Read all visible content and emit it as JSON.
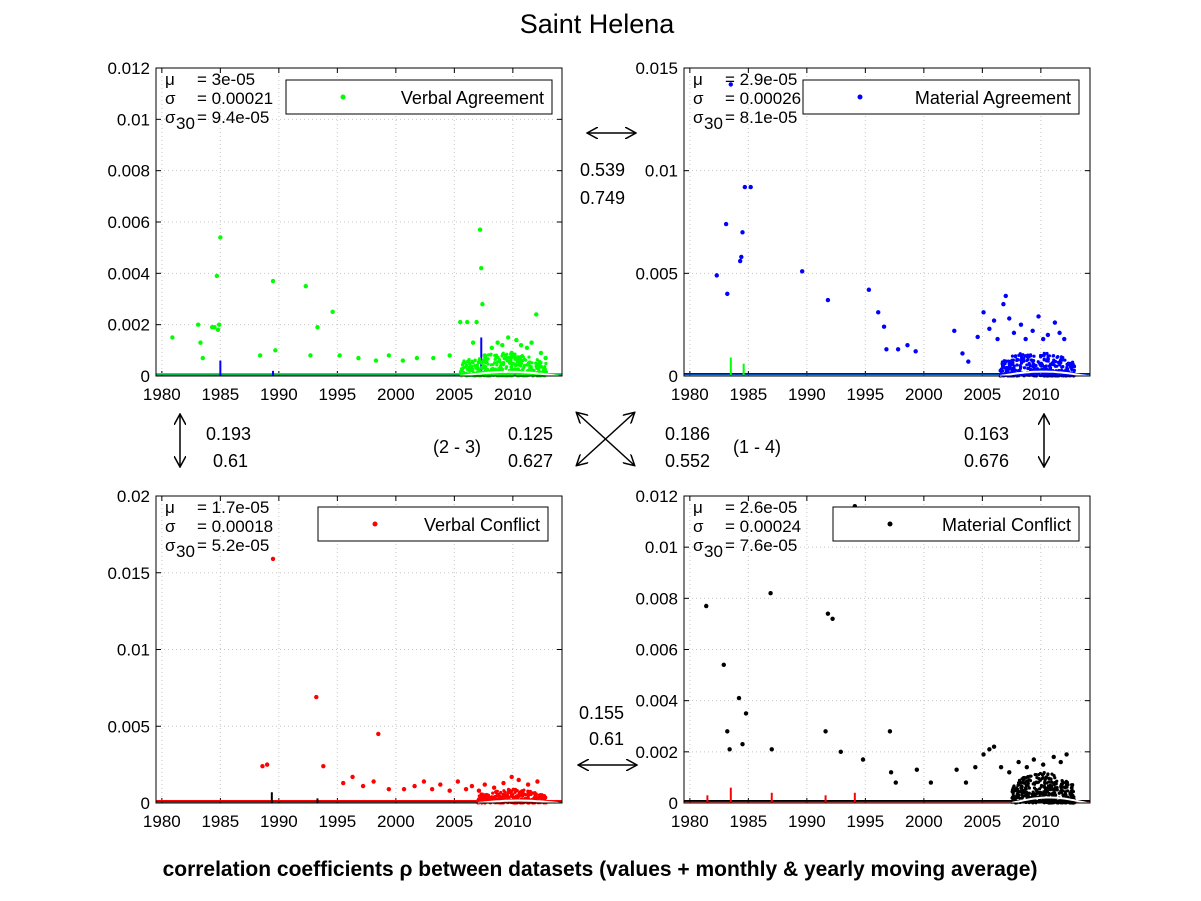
{
  "figure": {
    "title": "Saint Helena",
    "xlabel": "correlation coefficients ρ between datasets (values + monthly & yearly moving average)"
  },
  "correlations": [
    {
      "id": "1-2",
      "values": [
        "0.539",
        "0.749"
      ]
    },
    {
      "id": "1-3",
      "values": [
        "0.193",
        "0.61"
      ]
    },
    {
      "id": "2-3",
      "label": "(2 - 3)",
      "values": [
        "0.125",
        "0.627"
      ]
    },
    {
      "id": "1-4",
      "label": "(1 - 4)",
      "values": [
        "0.186",
        "0.552"
      ]
    },
    {
      "id": "2-4",
      "values": [
        "0.163",
        "0.676"
      ]
    },
    {
      "id": "3-4",
      "values": [
        "0.155",
        "0.61"
      ]
    }
  ],
  "chart_data": [
    {
      "type": "scatter",
      "panel": "Verbal Agreement",
      "legend": "Verbal Agreement",
      "color": "#00ff00",
      "overlay_color": "#0000ff",
      "stats": {
        "mu": "= 3e-05",
        "sigma": "= 0.00021",
        "sigma30": "= 9.4e-05"
      },
      "xlim": [
        1979.5,
        2014.2
      ],
      "ylim": [
        0,
        0.012
      ],
      "xticks": [
        "1980",
        "1985",
        "1990",
        "1995",
        "2000",
        "2005",
        "2010"
      ],
      "yticks": [
        "0",
        "0.002",
        "0.004",
        "0.006",
        "0.008",
        "0.01",
        "0.012"
      ],
      "grid": true,
      "legend_position": "top-right",
      "points": [
        [
          1980.9,
          0.0015
        ],
        [
          1983.1,
          0.002
        ],
        [
          1983.3,
          0.0013
        ],
        [
          1983.5,
          0.0007
        ],
        [
          1984.3,
          0.0019
        ],
        [
          1984.5,
          0.0019
        ],
        [
          1984.7,
          0.0039
        ],
        [
          1984.8,
          0.0018
        ],
        [
          1984.9,
          0.002
        ],
        [
          1985.0,
          0.0054
        ],
        [
          1988.4,
          0.0008
        ],
        [
          1989.5,
          0.0037
        ],
        [
          1989.7,
          0.001
        ],
        [
          1992.3,
          0.0035
        ],
        [
          1992.7,
          0.0008
        ],
        [
          1993.3,
          0.0019
        ],
        [
          1994.6,
          0.0025
        ],
        [
          1995.2,
          0.0008
        ],
        [
          1996.8,
          0.0007
        ],
        [
          1998.3,
          0.0006
        ],
        [
          1999.4,
          0.0008
        ],
        [
          2000.6,
          0.0006
        ],
        [
          2001.8,
          0.0007
        ],
        [
          2003.2,
          0.0007
        ],
        [
          2004.6,
          0.0008
        ],
        [
          2005.5,
          0.0021
        ],
        [
          2006.1,
          0.0021
        ],
        [
          2006.6,
          0.0013
        ],
        [
          2006.9,
          0.0021
        ],
        [
          2007.2,
          0.0057
        ],
        [
          2007.3,
          0.0042
        ],
        [
          2007.4,
          0.0028
        ],
        [
          2007.6,
          0.0008
        ],
        [
          2008.2,
          0.0011
        ],
        [
          2008.7,
          0.0013
        ],
        [
          2009.1,
          0.0012
        ],
        [
          2009.6,
          0.0015
        ],
        [
          2009.9,
          0.0009
        ],
        [
          2010.3,
          0.0014
        ],
        [
          2010.7,
          0.0012
        ],
        [
          2011.2,
          0.0011
        ],
        [
          2011.6,
          0.0013
        ],
        [
          2012.0,
          0.0024
        ],
        [
          2012.4,
          0.0009
        ],
        [
          2012.8,
          0.0007
        ]
      ],
      "dense_region": {
        "x": [
          2005.5,
          2012.9
        ],
        "ymax": 0.0009,
        "count": 420
      },
      "overlay_spikes": [
        [
          1985.0,
          0.0006
        ],
        [
          1989.5,
          0.0002
        ],
        [
          2007.3,
          0.0015
        ]
      ]
    },
    {
      "type": "scatter",
      "panel": "Material Agreement",
      "legend": "Material Agreement",
      "color": "#0000ff",
      "overlay_color": "#00ff00",
      "stats": {
        "mu": "= 2.9e-05",
        "sigma": "= 0.00026",
        "sigma30": "= 8.1e-05"
      },
      "xlim": [
        1979.5,
        2014.2
      ],
      "ylim": [
        0,
        0.015
      ],
      "xticks": [
        "1980",
        "1985",
        "1990",
        "1995",
        "2000",
        "2005",
        "2010"
      ],
      "yticks": [
        "0",
        "0.005",
        "0.01",
        "0.015"
      ],
      "grid": true,
      "legend_position": "top-right",
      "points": [
        [
          1982.3,
          0.0049
        ],
        [
          1983.1,
          0.0074
        ],
        [
          1983.2,
          0.004
        ],
        [
          1983.5,
          0.0142
        ],
        [
          1984.3,
          0.0056
        ],
        [
          1984.4,
          0.0058
        ],
        [
          1984.5,
          0.007
        ],
        [
          1984.7,
          0.0092
        ],
        [
          1985.2,
          0.0092
        ],
        [
          1989.6,
          0.0051
        ],
        [
          1991.8,
          0.0037
        ],
        [
          1995.3,
          0.0042
        ],
        [
          1996.1,
          0.0031
        ],
        [
          1996.6,
          0.0024
        ],
        [
          1996.8,
          0.0013
        ],
        [
          1997.8,
          0.0013
        ],
        [
          1998.6,
          0.0015
        ],
        [
          1999.3,
          0.0012
        ],
        [
          2002.6,
          0.0022
        ],
        [
          2003.3,
          0.0011
        ],
        [
          2003.8,
          0.0007
        ],
        [
          2004.6,
          0.0019
        ],
        [
          2005.1,
          0.0031
        ],
        [
          2005.6,
          0.0023
        ],
        [
          2006.0,
          0.0027
        ],
        [
          2006.3,
          0.0018
        ],
        [
          2006.8,
          0.0035
        ],
        [
          2007.0,
          0.0039
        ],
        [
          2007.3,
          0.0028
        ],
        [
          2007.7,
          0.0021
        ],
        [
          2008.3,
          0.0025
        ],
        [
          2008.7,
          0.0018
        ],
        [
          2009.3,
          0.0022
        ],
        [
          2009.8,
          0.0029
        ],
        [
          2010.2,
          0.0018
        ],
        [
          2010.6,
          0.002
        ],
        [
          2011.2,
          0.0026
        ],
        [
          2011.6,
          0.0021
        ],
        [
          2012.0,
          0.0018
        ]
      ],
      "dense_region": {
        "x": [
          2006.5,
          2012.9
        ],
        "ymax": 0.0012,
        "count": 380
      },
      "overlay_spikes": [
        [
          1983.5,
          0.0009
        ],
        [
          1984.6,
          0.0006
        ],
        [
          2010.0,
          0.0004
        ]
      ]
    },
    {
      "type": "scatter",
      "panel": "Verbal Conflict",
      "legend": "Verbal Conflict",
      "color": "#ff0000",
      "overlay_color": "#000000",
      "stats": {
        "mu": "= 1.7e-05",
        "sigma": "= 0.00018",
        "sigma30": "= 5.2e-05"
      },
      "xlim": [
        1979.5,
        2014.2
      ],
      "ylim": [
        0,
        0.02
      ],
      "xticks": [
        "1980",
        "1985",
        "1990",
        "1995",
        "2000",
        "2005",
        "2010"
      ],
      "yticks": [
        "0",
        "0.005",
        "0.01",
        "0.015",
        "0.02"
      ],
      "grid": true,
      "legend_position": "top-right",
      "points": [
        [
          1988.6,
          0.0024
        ],
        [
          1989.0,
          0.0025
        ],
        [
          1989.5,
          0.0159
        ],
        [
          1993.2,
          0.0069
        ],
        [
          1993.8,
          0.0024
        ],
        [
          1995.5,
          0.0013
        ],
        [
          1996.3,
          0.0017
        ],
        [
          1997.2,
          0.0011
        ],
        [
          1998.1,
          0.0014
        ],
        [
          1998.5,
          0.0045
        ],
        [
          1999.4,
          0.0009
        ],
        [
          2000.7,
          0.0009
        ],
        [
          2001.6,
          0.0011
        ],
        [
          2002.4,
          0.0014
        ],
        [
          2003.1,
          0.0009
        ],
        [
          2003.8,
          0.0012
        ],
        [
          2004.6,
          0.0008
        ],
        [
          2005.3,
          0.0014
        ],
        [
          2006.0,
          0.0009
        ],
        [
          2006.5,
          0.0011
        ],
        [
          2007.1,
          0.0008
        ],
        [
          2007.6,
          0.0012
        ],
        [
          2008.4,
          0.001
        ],
        [
          2009.2,
          0.0013
        ],
        [
          2009.9,
          0.0017
        ],
        [
          2010.5,
          0.0015
        ],
        [
          2011.3,
          0.0012
        ],
        [
          2012.1,
          0.0014
        ]
      ],
      "dense_region": {
        "x": [
          2007.0,
          2012.9
        ],
        "ymax": 0.0009,
        "count": 300
      },
      "overlay_spikes": [
        [
          1989.4,
          0.0007
        ],
        [
          1993.3,
          0.0003
        ]
      ]
    },
    {
      "type": "scatter",
      "panel": "Material Conflict",
      "legend": "Material Conflict",
      "color": "#000000",
      "overlay_color": "#ff0000",
      "stats": {
        "mu": "= 2.6e-05",
        "sigma": "= 0.00024",
        "sigma30": "= 7.6e-05"
      },
      "xlim": [
        1979.5,
        2014.2
      ],
      "ylim": [
        0,
        0.012
      ],
      "xticks": [
        "1980",
        "1985",
        "1990",
        "1995",
        "2000",
        "2005",
        "2010"
      ],
      "yticks": [
        "0",
        "0.002",
        "0.004",
        "0.006",
        "0.008",
        "0.01",
        "0.012"
      ],
      "grid": true,
      "legend_position": "top-right",
      "points": [
        [
          1981.4,
          0.0077
        ],
        [
          1982.9,
          0.0054
        ],
        [
          1983.2,
          0.0028
        ],
        [
          1983.4,
          0.0021
        ],
        [
          1984.2,
          0.0041
        ],
        [
          1984.5,
          0.0023
        ],
        [
          1984.8,
          0.0035
        ],
        [
          1986.9,
          0.0082
        ],
        [
          1987.0,
          0.0021
        ],
        [
          1991.6,
          0.0028
        ],
        [
          1991.8,
          0.0074
        ],
        [
          1992.2,
          0.0072
        ],
        [
          1992.9,
          0.002
        ],
        [
          1994.1,
          0.0116
        ],
        [
          1994.8,
          0.0017
        ],
        [
          1997.1,
          0.0028
        ],
        [
          1997.2,
          0.0012
        ],
        [
          1997.6,
          0.0008
        ],
        [
          1999.4,
          0.0013
        ],
        [
          2000.6,
          0.0008
        ],
        [
          2002.8,
          0.0013
        ],
        [
          2003.6,
          0.0008
        ],
        [
          2004.4,
          0.0014
        ],
        [
          2005.1,
          0.0019
        ],
        [
          2005.6,
          0.0021
        ],
        [
          2006.0,
          0.0022
        ],
        [
          2006.6,
          0.0014
        ],
        [
          2007.3,
          0.0012
        ],
        [
          2008.1,
          0.0016
        ],
        [
          2008.8,
          0.0014
        ],
        [
          2009.4,
          0.0017
        ],
        [
          2010.2,
          0.0015
        ],
        [
          2011.1,
          0.0018
        ],
        [
          2011.7,
          0.0016
        ],
        [
          2012.2,
          0.0019
        ]
      ],
      "dense_region": {
        "x": [
          2007.5,
          2012.9
        ],
        "ymax": 0.0012,
        "count": 380
      },
      "overlay_spikes": [
        [
          1981.5,
          0.0003
        ],
        [
          1983.5,
          0.0006
        ],
        [
          1987.0,
          0.0004
        ],
        [
          1991.6,
          0.0003
        ],
        [
          1994.1,
          0.0004
        ]
      ]
    }
  ]
}
